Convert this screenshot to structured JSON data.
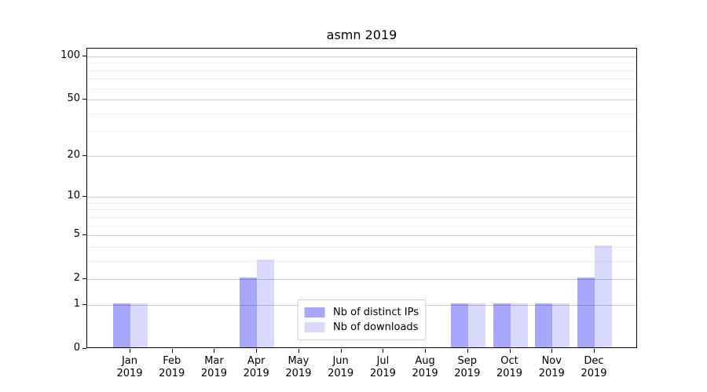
{
  "chart_data": {
    "type": "bar",
    "title": "asmn 2019",
    "categories": [
      "Jan",
      "Feb",
      "Mar",
      "Apr",
      "May",
      "Jun",
      "Jul",
      "Aug",
      "Sep",
      "Oct",
      "Nov",
      "Dec"
    ],
    "category_year": "2019",
    "series": [
      {
        "name": "Nb of distinct IPs",
        "color": "rgba(0,0,255,0.35)",
        "values": [
          1,
          0,
          0,
          2,
          0,
          0,
          0,
          0,
          1,
          1,
          1,
          2
        ]
      },
      {
        "name": "Nb of downloads",
        "color": "rgba(0,0,255,0.15)",
        "values": [
          1,
          0,
          0,
          3,
          0,
          0,
          0,
          0,
          1,
          1,
          1,
          4
        ]
      }
    ],
    "xlabel": "",
    "ylabel": "",
    "yscale": "log1p",
    "ylim": [
      0,
      113
    ],
    "yticks": [
      0,
      1,
      2,
      5,
      10,
      20,
      50,
      100
    ],
    "major_gridlines": [
      1,
      2,
      5,
      10,
      20,
      50,
      100
    ],
    "minor_gridlines": [
      3,
      4,
      6,
      7,
      8,
      9,
      30,
      40,
      60,
      70,
      80,
      90
    ],
    "grid": "on",
    "legend_position": "lower center",
    "colors": {
      "bar_distinct_ips": "rgba(0,0,255,0.35)",
      "bar_downloads": "rgba(0,0,255,0.15)",
      "major_grid": "#cccccc",
      "minor_grid": "#f0f0f0",
      "axis": "#000000"
    }
  }
}
